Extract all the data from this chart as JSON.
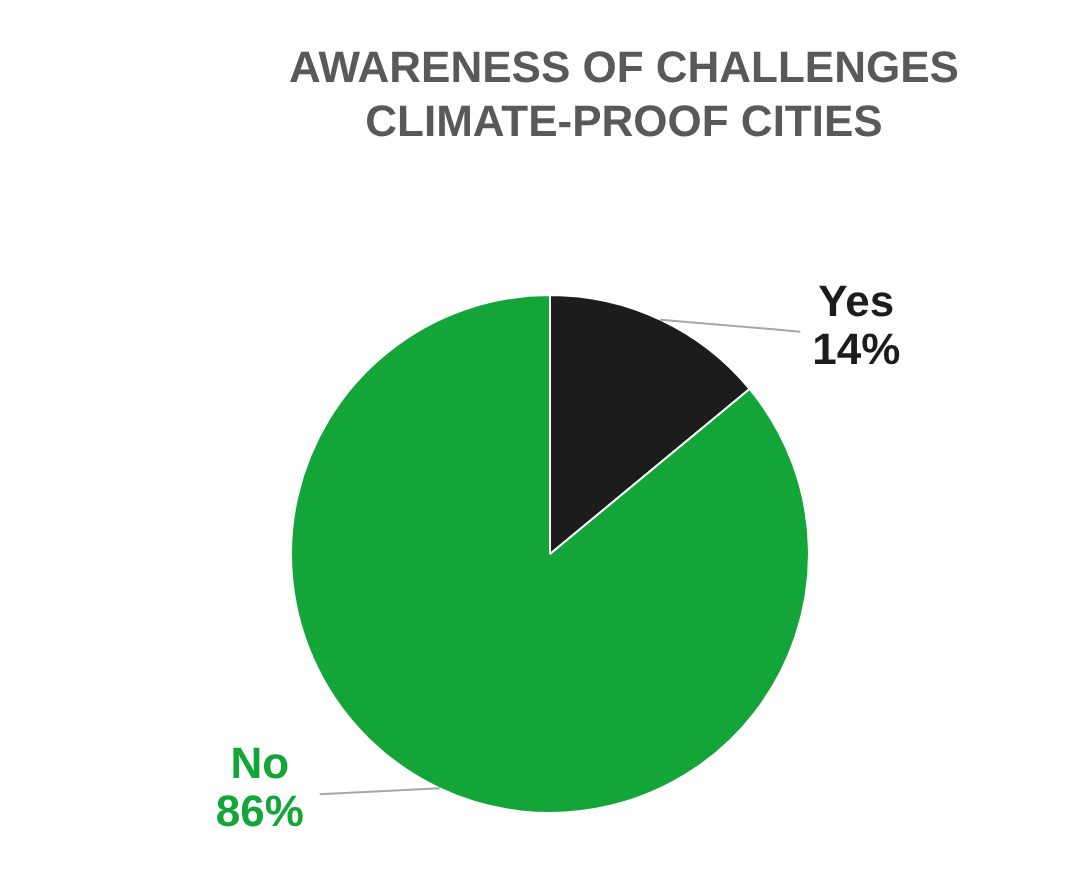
{
  "chart_data": {
    "type": "pie",
    "title": "AWARENESS OF CHALLENGES CLIMATE-PROOF CITIES",
    "categories": [
      "Yes",
      "No"
    ],
    "values": [
      14,
      86
    ],
    "colors": [
      "#1c1c1c",
      "#13a538"
    ],
    "value_labels": [
      "14%",
      "86%"
    ],
    "legend": false
  }
}
